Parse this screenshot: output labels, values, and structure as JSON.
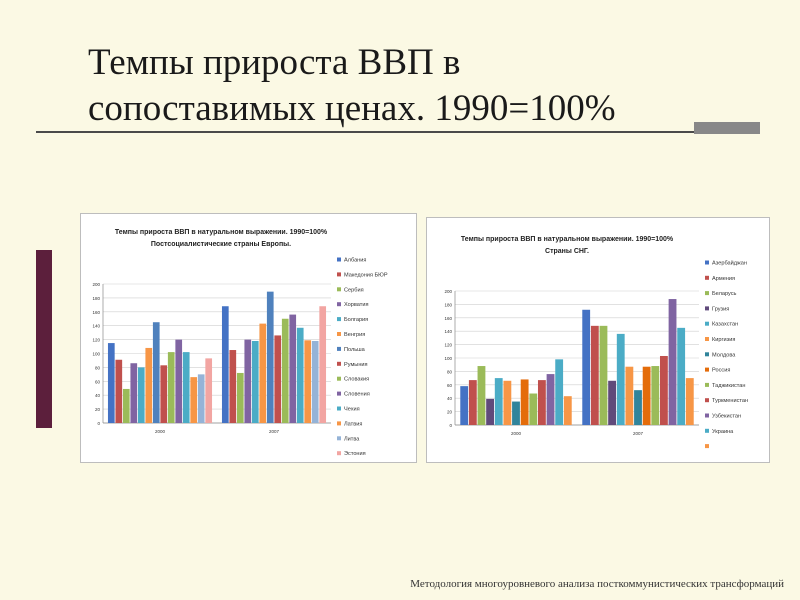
{
  "slide": {
    "title_line1": "Темпы прироста ВВП в",
    "title_line2": "сопоставимых ценах. 1990=100%",
    "footer": "Методология многоуровневого анализа посткоммунистических трансформаций",
    "accent_bar_color": "#5c1f3c"
  },
  "chart_data": [
    {
      "type": "bar",
      "title": "Темпы прироста ВВП в натуральном выражении. 1990=100%",
      "subtitle": "Постсоциалистические страны Европы.",
      "categories": [
        "2000",
        "2007"
      ],
      "ylim": [
        0,
        200
      ],
      "yticks": [
        0,
        20,
        40,
        60,
        80,
        100,
        120,
        140,
        160,
        180,
        200
      ],
      "grid": true,
      "legend_position": "right",
      "series": [
        {
          "name": "Албания",
          "color": "#4472c4",
          "values": [
            115,
            168
          ]
        },
        {
          "name": "Македония БЮР",
          "color": "#c0504d",
          "values": [
            91,
            105
          ]
        },
        {
          "name": "Сербия",
          "color": "#9bbb59",
          "values": [
            49,
            72
          ]
        },
        {
          "name": "Хорватия",
          "color": "#8064a2",
          "values": [
            86,
            120
          ]
        },
        {
          "name": "Болгария",
          "color": "#4bacc6",
          "values": [
            80,
            118
          ]
        },
        {
          "name": "Венгрия",
          "color": "#f79646",
          "values": [
            108,
            143
          ]
        },
        {
          "name": "Польша",
          "color": "#4f81bd",
          "values": [
            145,
            189
          ]
        },
        {
          "name": "Румыния",
          "color": "#c0504d",
          "values": [
            83,
            126
          ]
        },
        {
          "name": "Словакия",
          "color": "#9bbb59",
          "values": [
            102,
            150
          ]
        },
        {
          "name": "Словения",
          "color": "#8064a2",
          "values": [
            120,
            156
          ]
        },
        {
          "name": "Чехия",
          "color": "#4bacc6",
          "values": [
            102,
            137
          ]
        },
        {
          "name": "Латвия",
          "color": "#f79646",
          "values": [
            66,
            119
          ]
        },
        {
          "name": "Литва",
          "color": "#95b3d7",
          "values": [
            70,
            118
          ]
        },
        {
          "name": "Эстония",
          "color": "#f2a5a2",
          "values": [
            93,
            168
          ]
        }
      ]
    },
    {
      "type": "bar",
      "title": "Темпы прироста ВВП в натуральном выражении. 1990=100%",
      "subtitle": "Страны СНГ.",
      "categories": [
        "2000",
        "2007"
      ],
      "ylim": [
        0,
        200
      ],
      "yticks": [
        0,
        20,
        40,
        60,
        80,
        100,
        120,
        140,
        160,
        180,
        200
      ],
      "grid": true,
      "legend_position": "right",
      "series": [
        {
          "name": "Азербайджан",
          "color": "#4472c4",
          "values": [
            58,
            172
          ]
        },
        {
          "name": "Армения",
          "color": "#c0504d",
          "values": [
            67,
            148
          ]
        },
        {
          "name": "Беларусь",
          "color": "#9bbb59",
          "values": [
            88,
            148
          ]
        },
        {
          "name": "Грузия",
          "color": "#604a7b",
          "values": [
            39,
            66
          ]
        },
        {
          "name": "Казахстан",
          "color": "#4bacc6",
          "values": [
            70,
            136
          ]
        },
        {
          "name": "Киргизия",
          "color": "#f79646",
          "values": [
            66,
            87
          ]
        },
        {
          "name": "Молдова",
          "color": "#31849b",
          "values": [
            35,
            52
          ]
        },
        {
          "name": "Россия",
          "color": "#e46c0a",
          "values": [
            68,
            87
          ]
        },
        {
          "name": "Таджикистан",
          "color": "#9bbb59",
          "values": [
            47,
            88
          ]
        },
        {
          "name": "Туркменистан",
          "color": "#c0504d",
          "values": [
            67,
            103
          ]
        },
        {
          "name": "Узбекистан",
          "color": "#8064a2",
          "values": [
            76,
            188
          ]
        },
        {
          "name": "Украина",
          "color": "#4bacc6",
          "values": [
            98,
            145
          ]
        },
        {
          "name": "",
          "color": "#f79646",
          "values": [
            43,
            70
          ]
        }
      ]
    }
  ]
}
